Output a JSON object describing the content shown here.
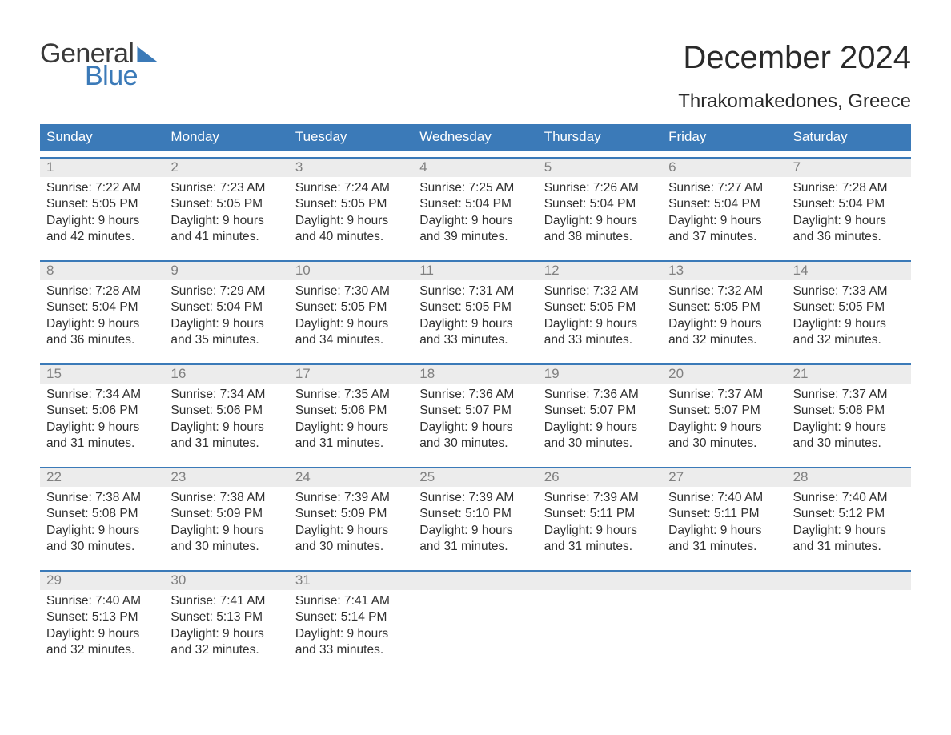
{
  "brand": {
    "word1": "General",
    "word2": "Blue",
    "icon_name": "flag-icon"
  },
  "colors": {
    "brand_blue": "#3b7ab8",
    "header_bg": "#3b7ab8",
    "row_bg": "#ececec",
    "row_border_top": "#3b7ab8",
    "page_bg": "#ffffff",
    "text_dark": "#303030",
    "daynum_gray": "#808080",
    "header_text": "#ffffff"
  },
  "title": {
    "month": "December 2024",
    "location": "Thrakomakedones, Greece"
  },
  "calendar": {
    "type": "table",
    "day_labels": [
      "Sunday",
      "Monday",
      "Tuesday",
      "Wednesday",
      "Thursday",
      "Friday",
      "Saturday"
    ],
    "weeks": [
      [
        {
          "num": "1",
          "sunrise": "Sunrise: 7:22 AM",
          "sunset": "Sunset: 5:05 PM",
          "day1": "Daylight: 9 hours",
          "day2": "and 42 minutes."
        },
        {
          "num": "2",
          "sunrise": "Sunrise: 7:23 AM",
          "sunset": "Sunset: 5:05 PM",
          "day1": "Daylight: 9 hours",
          "day2": "and 41 minutes."
        },
        {
          "num": "3",
          "sunrise": "Sunrise: 7:24 AM",
          "sunset": "Sunset: 5:05 PM",
          "day1": "Daylight: 9 hours",
          "day2": "and 40 minutes."
        },
        {
          "num": "4",
          "sunrise": "Sunrise: 7:25 AM",
          "sunset": "Sunset: 5:04 PM",
          "day1": "Daylight: 9 hours",
          "day2": "and 39 minutes."
        },
        {
          "num": "5",
          "sunrise": "Sunrise: 7:26 AM",
          "sunset": "Sunset: 5:04 PM",
          "day1": "Daylight: 9 hours",
          "day2": "and 38 minutes."
        },
        {
          "num": "6",
          "sunrise": "Sunrise: 7:27 AM",
          "sunset": "Sunset: 5:04 PM",
          "day1": "Daylight: 9 hours",
          "day2": "and 37 minutes."
        },
        {
          "num": "7",
          "sunrise": "Sunrise: 7:28 AM",
          "sunset": "Sunset: 5:04 PM",
          "day1": "Daylight: 9 hours",
          "day2": "and 36 minutes."
        }
      ],
      [
        {
          "num": "8",
          "sunrise": "Sunrise: 7:28 AM",
          "sunset": "Sunset: 5:04 PM",
          "day1": "Daylight: 9 hours",
          "day2": "and 36 minutes."
        },
        {
          "num": "9",
          "sunrise": "Sunrise: 7:29 AM",
          "sunset": "Sunset: 5:04 PM",
          "day1": "Daylight: 9 hours",
          "day2": "and 35 minutes."
        },
        {
          "num": "10",
          "sunrise": "Sunrise: 7:30 AM",
          "sunset": "Sunset: 5:05 PM",
          "day1": "Daylight: 9 hours",
          "day2": "and 34 minutes."
        },
        {
          "num": "11",
          "sunrise": "Sunrise: 7:31 AM",
          "sunset": "Sunset: 5:05 PM",
          "day1": "Daylight: 9 hours",
          "day2": "and 33 minutes."
        },
        {
          "num": "12",
          "sunrise": "Sunrise: 7:32 AM",
          "sunset": "Sunset: 5:05 PM",
          "day1": "Daylight: 9 hours",
          "day2": "and 33 minutes."
        },
        {
          "num": "13",
          "sunrise": "Sunrise: 7:32 AM",
          "sunset": "Sunset: 5:05 PM",
          "day1": "Daylight: 9 hours",
          "day2": "and 32 minutes."
        },
        {
          "num": "14",
          "sunrise": "Sunrise: 7:33 AM",
          "sunset": "Sunset: 5:05 PM",
          "day1": "Daylight: 9 hours",
          "day2": "and 32 minutes."
        }
      ],
      [
        {
          "num": "15",
          "sunrise": "Sunrise: 7:34 AM",
          "sunset": "Sunset: 5:06 PM",
          "day1": "Daylight: 9 hours",
          "day2": "and 31 minutes."
        },
        {
          "num": "16",
          "sunrise": "Sunrise: 7:34 AM",
          "sunset": "Sunset: 5:06 PM",
          "day1": "Daylight: 9 hours",
          "day2": "and 31 minutes."
        },
        {
          "num": "17",
          "sunrise": "Sunrise: 7:35 AM",
          "sunset": "Sunset: 5:06 PM",
          "day1": "Daylight: 9 hours",
          "day2": "and 31 minutes."
        },
        {
          "num": "18",
          "sunrise": "Sunrise: 7:36 AM",
          "sunset": "Sunset: 5:07 PM",
          "day1": "Daylight: 9 hours",
          "day2": "and 30 minutes."
        },
        {
          "num": "19",
          "sunrise": "Sunrise: 7:36 AM",
          "sunset": "Sunset: 5:07 PM",
          "day1": "Daylight: 9 hours",
          "day2": "and 30 minutes."
        },
        {
          "num": "20",
          "sunrise": "Sunrise: 7:37 AM",
          "sunset": "Sunset: 5:07 PM",
          "day1": "Daylight: 9 hours",
          "day2": "and 30 minutes."
        },
        {
          "num": "21",
          "sunrise": "Sunrise: 7:37 AM",
          "sunset": "Sunset: 5:08 PM",
          "day1": "Daylight: 9 hours",
          "day2": "and 30 minutes."
        }
      ],
      [
        {
          "num": "22",
          "sunrise": "Sunrise: 7:38 AM",
          "sunset": "Sunset: 5:08 PM",
          "day1": "Daylight: 9 hours",
          "day2": "and 30 minutes."
        },
        {
          "num": "23",
          "sunrise": "Sunrise: 7:38 AM",
          "sunset": "Sunset: 5:09 PM",
          "day1": "Daylight: 9 hours",
          "day2": "and 30 minutes."
        },
        {
          "num": "24",
          "sunrise": "Sunrise: 7:39 AM",
          "sunset": "Sunset: 5:09 PM",
          "day1": "Daylight: 9 hours",
          "day2": "and 30 minutes."
        },
        {
          "num": "25",
          "sunrise": "Sunrise: 7:39 AM",
          "sunset": "Sunset: 5:10 PM",
          "day1": "Daylight: 9 hours",
          "day2": "and 31 minutes."
        },
        {
          "num": "26",
          "sunrise": "Sunrise: 7:39 AM",
          "sunset": "Sunset: 5:11 PM",
          "day1": "Daylight: 9 hours",
          "day2": "and 31 minutes."
        },
        {
          "num": "27",
          "sunrise": "Sunrise: 7:40 AM",
          "sunset": "Sunset: 5:11 PM",
          "day1": "Daylight: 9 hours",
          "day2": "and 31 minutes."
        },
        {
          "num": "28",
          "sunrise": "Sunrise: 7:40 AM",
          "sunset": "Sunset: 5:12 PM",
          "day1": "Daylight: 9 hours",
          "day2": "and 31 minutes."
        }
      ],
      [
        {
          "num": "29",
          "sunrise": "Sunrise: 7:40 AM",
          "sunset": "Sunset: 5:13 PM",
          "day1": "Daylight: 9 hours",
          "day2": "and 32 minutes."
        },
        {
          "num": "30",
          "sunrise": "Sunrise: 7:41 AM",
          "sunset": "Sunset: 5:13 PM",
          "day1": "Daylight: 9 hours",
          "day2": "and 32 minutes."
        },
        {
          "num": "31",
          "sunrise": "Sunrise: 7:41 AM",
          "sunset": "Sunset: 5:14 PM",
          "day1": "Daylight: 9 hours",
          "day2": "and 33 minutes."
        },
        null,
        null,
        null,
        null
      ]
    ]
  }
}
